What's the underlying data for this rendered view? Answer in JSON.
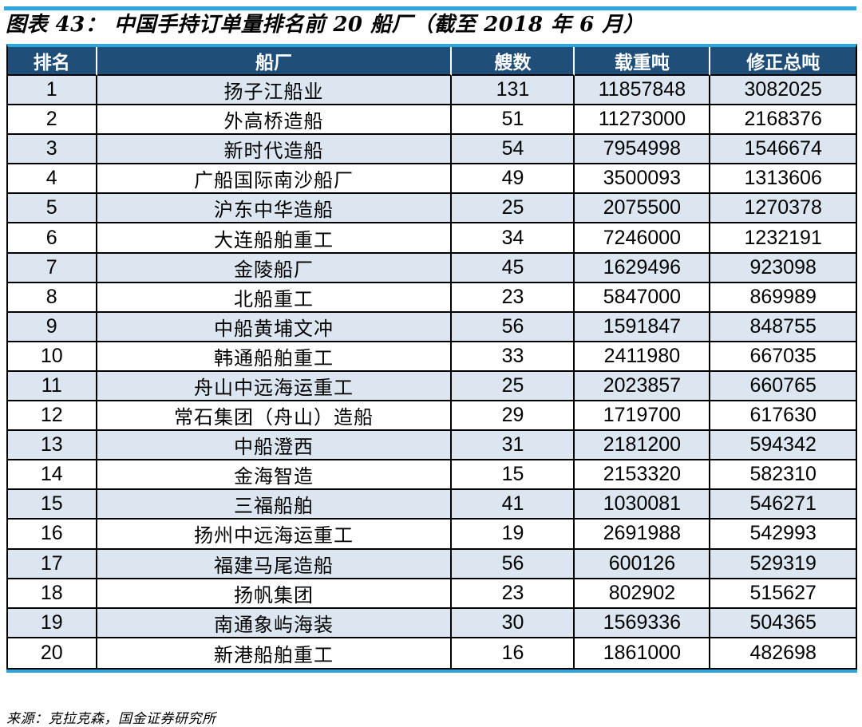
{
  "figure": {
    "title": "图表 43： 中国手持订单量排名前 20 船厂（截至 2018 年 6 月）",
    "source": "来源：克拉克森，国金证券研究所"
  },
  "colors": {
    "accent": "#2AA7DF",
    "header_bg": "#1F4E79",
    "row_alt": "#DCE6F1",
    "header_text": "#FFFFFF",
    "grid": "#000000"
  },
  "chart_data": {
    "type": "table",
    "title": "图表43：中国手持订单量排名前20船厂（截至2018年6月）",
    "columns": [
      "排名",
      "船厂",
      "艘数",
      "载重吨",
      "修正总吨"
    ],
    "rows": [
      [
        "1",
        "扬子江船业",
        "131",
        "11857848",
        "3082025"
      ],
      [
        "2",
        "外高桥造船",
        "51",
        "11273000",
        "2168376"
      ],
      [
        "3",
        "新时代造船",
        "54",
        "7954998",
        "1546674"
      ],
      [
        "4",
        "广船国际南沙船厂",
        "49",
        "3500093",
        "1313606"
      ],
      [
        "5",
        "沪东中华造船",
        "25",
        "2075500",
        "1270378"
      ],
      [
        "6",
        "大连船舶重工",
        "34",
        "7246000",
        "1232191"
      ],
      [
        "7",
        "金陵船厂",
        "45",
        "1629496",
        "923098"
      ],
      [
        "8",
        "北船重工",
        "23",
        "5847000",
        "869989"
      ],
      [
        "9",
        "中船黄埔文冲",
        "56",
        "1591847",
        "848755"
      ],
      [
        "10",
        "韩通船舶重工",
        "33",
        "2411980",
        "667035"
      ],
      [
        "11",
        "舟山中远海运重工",
        "25",
        "2023857",
        "660765"
      ],
      [
        "12",
        "常石集团（舟山）造船",
        "29",
        "1719700",
        "617630"
      ],
      [
        "13",
        "中船澄西",
        "31",
        "2181200",
        "594342"
      ],
      [
        "14",
        "金海智造",
        "15",
        "2153320",
        "582310"
      ],
      [
        "15",
        "三福船舶",
        "41",
        "1030081",
        "546271"
      ],
      [
        "16",
        "扬州中远海运重工",
        "19",
        "2691988",
        "542993"
      ],
      [
        "17",
        "福建马尾造船",
        "56",
        "600126",
        "529319"
      ],
      [
        "18",
        "扬帆集团",
        "23",
        "802902",
        "515627"
      ],
      [
        "19",
        "南通象屿海装",
        "30",
        "1569336",
        "504365"
      ],
      [
        "20",
        "新港船舶重工",
        "16",
        "1861000",
        "482698"
      ]
    ]
  }
}
